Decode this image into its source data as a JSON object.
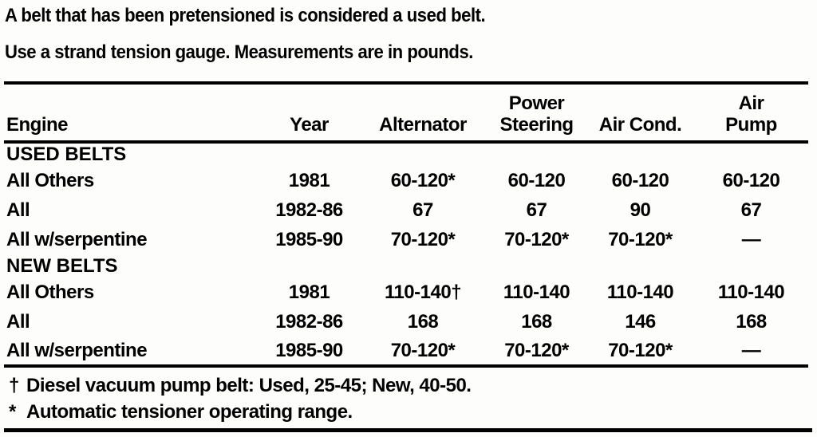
{
  "intro": {
    "line1": "A belt that has been pretensioned is considered a used belt.",
    "line2": "Use a strand tension gauge. Measurements are in pounds."
  },
  "table": {
    "headers": {
      "engine": "Engine",
      "year": "Year",
      "alternator": "Alternator",
      "power_steering_line1": "Power",
      "power_steering_line2": "Steering",
      "air_cond": "Air Cond.",
      "air_pump_line1": "Air",
      "air_pump_line2": "Pump"
    },
    "sections": [
      {
        "title": "USED BELTS",
        "rows": [
          {
            "engine": "All Others",
            "year": "1981",
            "alternator": "60-120*",
            "power_steering": "60-120",
            "air_cond": "60-120",
            "air_pump": "60-120"
          },
          {
            "engine": "All",
            "year": "1982-86",
            "alternator": "67",
            "power_steering": "67",
            "air_cond": "90",
            "air_pump": "67"
          },
          {
            "engine": "All w/serpentine",
            "year": "1985-90",
            "alternator": "70-120*",
            "power_steering": "70-120*",
            "air_cond": "70-120*",
            "air_pump": "—"
          }
        ]
      },
      {
        "title": "NEW BELTS",
        "rows": [
          {
            "engine": "All Others",
            "year": "1981",
            "alternator": "110-140†",
            "power_steering": "110-140",
            "air_cond": "110-140",
            "air_pump": "110-140"
          },
          {
            "engine": "All",
            "year": "1982-86",
            "alternator": "168",
            "power_steering": "168",
            "air_cond": "146",
            "air_pump": "168"
          },
          {
            "engine": "All w/serpentine",
            "year": "1985-90",
            "alternator": "70-120*",
            "power_steering": "70-120*",
            "air_cond": "70-120*",
            "air_pump": "—"
          }
        ]
      }
    ]
  },
  "footnotes": [
    {
      "symbol": "†",
      "text": "Diesel vacuum pump belt: Used, 25-45; New, 40-50."
    },
    {
      "symbol": "*",
      "text": "Automatic tensioner operating range."
    }
  ]
}
